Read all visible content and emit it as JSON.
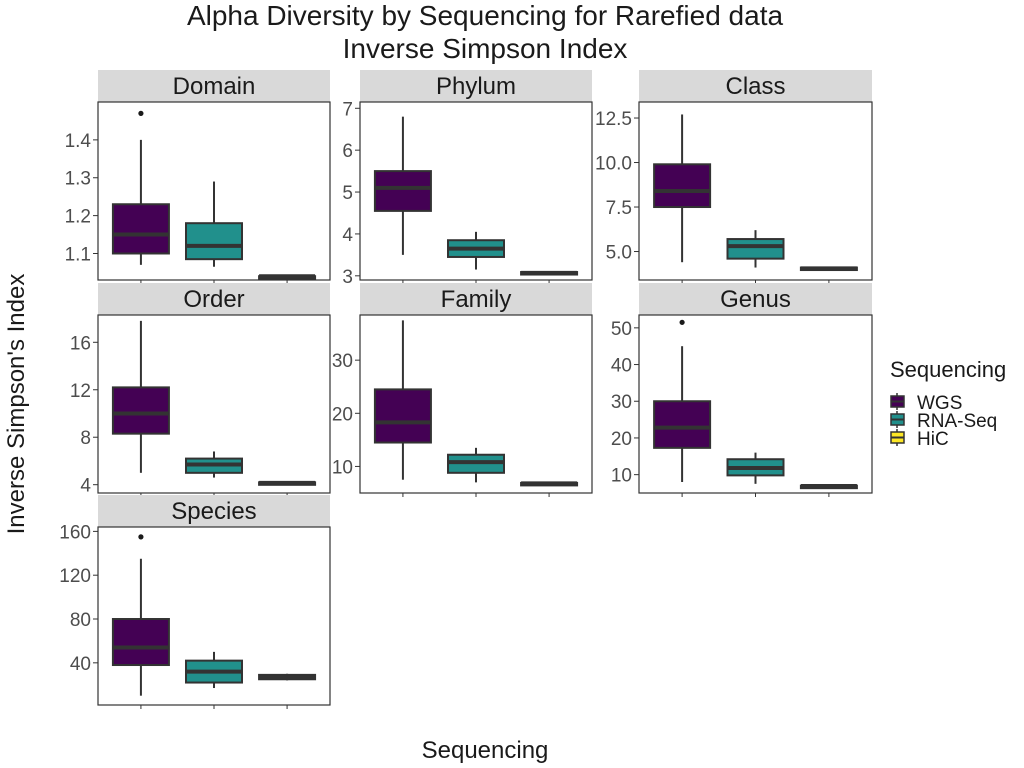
{
  "title_line1": "Alpha Diversity by Sequencing for Rarefied data",
  "title_line2": "Inverse Simpson Index",
  "xlabel": "Sequencing",
  "ylabel": "Inverse Simpson's Index",
  "legend": {
    "title": "Sequencing",
    "position": "right",
    "items": [
      {
        "label": "WGS",
        "color": "#440154"
      },
      {
        "label": "RNA-Seq",
        "color": "#21908C"
      },
      {
        "label": "HiC",
        "color": "#FDE725"
      }
    ]
  },
  "chart_data": {
    "type": "boxplot",
    "facet_by": "Taxonomic level",
    "groups": [
      "WGS",
      "RNA-Seq",
      "HiC"
    ],
    "grid": false,
    "facets": [
      {
        "name": "Domain",
        "ylim": [
          1.03,
          1.5
        ],
        "ticks": [
          {
            "v": 1.1,
            "label": "1.1"
          },
          {
            "v": 1.2,
            "label": "1.2"
          },
          {
            "v": 1.3,
            "label": "1.3"
          },
          {
            "v": 1.4,
            "label": "1.4"
          }
        ],
        "boxes": [
          {
            "min": 1.07,
            "q1": 1.1,
            "median": 1.15,
            "q3": 1.23,
            "max": 1.4,
            "outliers": [
              1.47
            ]
          },
          {
            "min": 1.065,
            "q1": 1.085,
            "median": 1.12,
            "q3": 1.18,
            "max": 1.29,
            "outliers": []
          },
          {
            "min": 1.04,
            "q1": 1.04,
            "median": 1.04,
            "q3": 1.04,
            "max": 1.04,
            "outliers": []
          }
        ]
      },
      {
        "name": "Phylum",
        "ylim": [
          2.9,
          7.15
        ],
        "ticks": [
          {
            "v": 3,
            "label": "3"
          },
          {
            "v": 4,
            "label": "4"
          },
          {
            "v": 5,
            "label": "5"
          },
          {
            "v": 6,
            "label": "6"
          },
          {
            "v": 7,
            "label": "7"
          }
        ],
        "boxes": [
          {
            "min": 3.5,
            "q1": 4.55,
            "median": 5.1,
            "q3": 5.5,
            "max": 6.8,
            "outliers": []
          },
          {
            "min": 3.15,
            "q1": 3.45,
            "median": 3.65,
            "q3": 3.85,
            "max": 4.05,
            "outliers": []
          },
          {
            "min": 3.05,
            "q1": 3.05,
            "median": 3.07,
            "q3": 3.09,
            "max": 3.1,
            "outliers": []
          }
        ]
      },
      {
        "name": "Class",
        "ylim": [
          3.4,
          13.4
        ],
        "ticks": [
          {
            "v": 5,
            "label": "5.0"
          },
          {
            "v": 7.5,
            "label": "7.5"
          },
          {
            "v": 10,
            "label": "10.0"
          },
          {
            "v": 12.5,
            "label": "12.5"
          }
        ],
        "boxes": [
          {
            "min": 4.4,
            "q1": 7.5,
            "median": 8.4,
            "q3": 9.9,
            "max": 12.7,
            "outliers": []
          },
          {
            "min": 4.1,
            "q1": 4.6,
            "median": 5.3,
            "q3": 5.7,
            "max": 6.2,
            "outliers": []
          },
          {
            "min": 4.0,
            "q1": 4.0,
            "median": 4.05,
            "q3": 4.1,
            "max": 4.1,
            "outliers": []
          }
        ]
      },
      {
        "name": "Order",
        "ylim": [
          3.3,
          18.3
        ],
        "ticks": [
          {
            "v": 4,
            "label": "4"
          },
          {
            "v": 8,
            "label": "8"
          },
          {
            "v": 12,
            "label": "12"
          },
          {
            "v": 16,
            "label": "16"
          }
        ],
        "boxes": [
          {
            "min": 5.0,
            "q1": 8.3,
            "median": 10.0,
            "q3": 12.2,
            "max": 17.8,
            "outliers": []
          },
          {
            "min": 4.6,
            "q1": 5.0,
            "median": 5.7,
            "q3": 6.2,
            "max": 6.8,
            "outliers": []
          },
          {
            "min": 4.1,
            "q1": 4.1,
            "median": 4.15,
            "q3": 4.2,
            "max": 4.2,
            "outliers": []
          }
        ]
      },
      {
        "name": "Family",
        "ylim": [
          5,
          38.5
        ],
        "ticks": [
          {
            "v": 10,
            "label": "10"
          },
          {
            "v": 20,
            "label": "20"
          },
          {
            "v": 30,
            "label": "30"
          }
        ],
        "boxes": [
          {
            "min": 7.5,
            "q1": 14.5,
            "median": 18.3,
            "q3": 24.5,
            "max": 37.5,
            "outliers": []
          },
          {
            "min": 7.0,
            "q1": 8.8,
            "median": 10.8,
            "q3": 12.2,
            "max": 13.5,
            "outliers": []
          },
          {
            "min": 6.7,
            "q1": 6.7,
            "median": 6.8,
            "q3": 6.9,
            "max": 6.9,
            "outliers": []
          }
        ]
      },
      {
        "name": "Genus",
        "ylim": [
          5,
          53.5
        ],
        "ticks": [
          {
            "v": 10,
            "label": "10"
          },
          {
            "v": 20,
            "label": "20"
          },
          {
            "v": 30,
            "label": "30"
          },
          {
            "v": 40,
            "label": "40"
          },
          {
            "v": 50,
            "label": "50"
          }
        ],
        "boxes": [
          {
            "min": 8.0,
            "q1": 17.3,
            "median": 22.8,
            "q3": 30.0,
            "max": 45.0,
            "outliers": [
              51.5
            ]
          },
          {
            "min": 7.5,
            "q1": 9.8,
            "median": 11.8,
            "q3": 14.2,
            "max": 16.0,
            "outliers": []
          },
          {
            "min": 6.8,
            "q1": 6.8,
            "median": 6.9,
            "q3": 7.0,
            "max": 7.0,
            "outliers": []
          }
        ]
      },
      {
        "name": "Species",
        "ylim": [
          1.5,
          164
        ],
        "ticks": [
          {
            "v": 40,
            "label": "40"
          },
          {
            "v": 80,
            "label": "80"
          },
          {
            "v": 120,
            "label": "120"
          },
          {
            "v": 160,
            "label": "160"
          }
        ],
        "boxes": [
          {
            "min": 10,
            "q1": 38,
            "median": 54,
            "q3": 80,
            "max": 135,
            "outliers": [
              155
            ]
          },
          {
            "min": 17,
            "q1": 22,
            "median": 32,
            "q3": 42,
            "max": 50,
            "outliers": []
          },
          {
            "min": 24,
            "q1": 25,
            "median": 27,
            "q3": 29,
            "max": 30,
            "outliers": []
          }
        ]
      }
    ]
  }
}
